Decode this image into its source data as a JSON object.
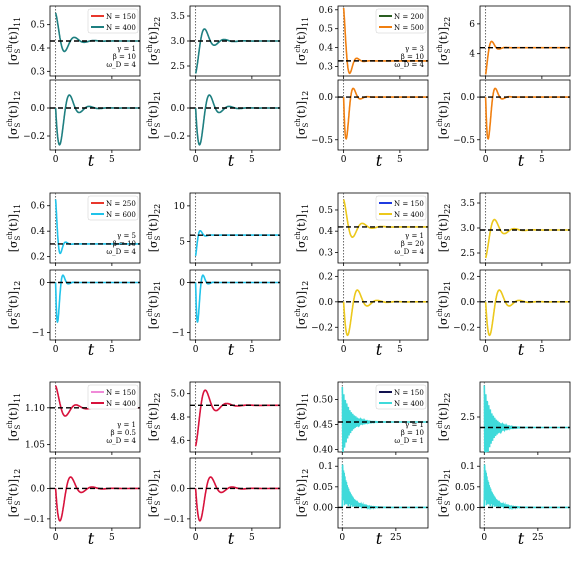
{
  "figure": {
    "xlabel": "t",
    "ylabels": {
      "11": "[σ_S^ch(t)]_11",
      "22": "[σ_S^ch(t)]_22",
      "12": "[σ_S^ch(t)]_12",
      "21": "[σ_S^ch(t)]_21"
    }
  },
  "chart_data": [
    {
      "type": "line",
      "group": "row1-left",
      "legend": [
        {
          "label": "N = 150",
          "color": "#e8372c"
        },
        {
          "label": "N = 400",
          "color": "#1e7f80"
        }
      ],
      "params": [
        "γ = 1",
        "β = 10",
        "ω_D = 4"
      ],
      "main_color": "#1e7f80",
      "xlim": [
        -0.5,
        7.5
      ],
      "xticks": [
        0,
        5
      ],
      "top": {
        "element": "11",
        "ylim": [
          0.28,
          0.58
        ],
        "yticks": [
          0.3,
          0.4,
          0.5
        ],
        "ytick_labels": [
          "0.3",
          "0.4",
          "0.5"
        ],
        "start": 0.55,
        "final": 0.43,
        "decay": 1.2,
        "omega": 3.6
      },
      "bottom": {
        "element": "12",
        "ylim": [
          -0.3,
          0.2
        ],
        "yticks": [
          -0.2,
          0.0
        ],
        "ytick_labels": [
          "−0.2",
          "0.0"
        ],
        "start": 0,
        "amp": 0.42,
        "final": 0,
        "decay": 1.2,
        "omega": 3.6
      }
    },
    {
      "type": "line",
      "group": "row1-left",
      "legend": [],
      "main_color": "#1e7f80",
      "xlim": [
        -0.5,
        7.5
      ],
      "xticks": [
        0,
        5
      ],
      "top": {
        "element": "22",
        "ylim": [
          2.3,
          3.7
        ],
        "yticks": [
          2.5,
          3.0,
          3.5
        ],
        "ytick_labels": [
          "2.5",
          "3.0",
          "3.5"
        ],
        "start": 2.35,
        "final": 3.0,
        "decay": 1.2,
        "omega": 3.6
      },
      "bottom": {
        "element": "21",
        "ylim": [
          -0.3,
          0.2
        ],
        "yticks": [
          -0.2,
          0.0
        ],
        "ytick_labels": [
          "−0.2",
          "0.0"
        ],
        "start": 0,
        "amp": 0.42,
        "final": 0,
        "decay": 1.2,
        "omega": 3.6
      }
    },
    {
      "type": "line",
      "group": "row1-right",
      "legend": [
        {
          "label": "N = 200",
          "color": "#2a5e21"
        },
        {
          "label": "N = 500",
          "color": "#f07f10"
        }
      ],
      "params": [
        "γ = 3",
        "β = 10",
        "ω_D = 4"
      ],
      "main_color": "#f07f10",
      "xlim": [
        -0.5,
        7.5
      ],
      "xticks": [
        0,
        5
      ],
      "top": {
        "element": "11",
        "ylim": [
          0.25,
          0.62
        ],
        "yticks": [
          0.3,
          0.4,
          0.5,
          0.6
        ],
        "ytick_labels": [
          "0.3",
          "0.4",
          "0.5",
          "0.6"
        ],
        "start": 0.61,
        "final": 0.33,
        "decay": 2.5,
        "omega": 5.0
      },
      "bottom": {
        "element": "12",
        "ylim": [
          -0.62,
          0.2
        ],
        "yticks": [
          -0.5,
          0.0
        ],
        "ytick_labels": [
          "−0.5",
          "0.0"
        ],
        "start": 0,
        "amp": 0.95,
        "final": 0,
        "decay": 2.5,
        "omega": 5.0
      }
    },
    {
      "type": "line",
      "group": "row1-right",
      "legend": [],
      "main_color": "#f07f10",
      "xlim": [
        -0.5,
        7.5
      ],
      "xticks": [
        0,
        5
      ],
      "top": {
        "element": "22",
        "ylim": [
          2.5,
          7.2
        ],
        "yticks": [
          4,
          6
        ],
        "ytick_labels": [
          "4",
          "6"
        ],
        "start": 2.6,
        "final": 4.4,
        "decay": 2.5,
        "omega": 5.0
      },
      "bottom": {
        "element": "21",
        "ylim": [
          -0.62,
          0.2
        ],
        "yticks": [
          -0.5,
          0.0
        ],
        "ytick_labels": [
          "−0.5",
          "0.0"
        ],
        "start": 0,
        "amp": 0.95,
        "final": 0,
        "decay": 2.5,
        "omega": 5.0
      }
    },
    {
      "type": "line",
      "group": "row2-left",
      "legend": [
        {
          "label": "N = 250",
          "color": "#e8372c"
        },
        {
          "label": "N = 600",
          "color": "#20c3ea"
        }
      ],
      "params": [
        "γ = 5",
        "β = 10",
        "ω_D = 4"
      ],
      "main_color": "#20c3ea",
      "xlim": [
        -0.5,
        7.5
      ],
      "xticks": [
        0,
        5
      ],
      "top": {
        "element": "11",
        "ylim": [
          0.15,
          0.7
        ],
        "yticks": [
          0.2,
          0.4,
          0.6
        ],
        "ytick_labels": [
          "0.2",
          "0.4",
          "0.6"
        ],
        "start": 0.65,
        "final": 0.3,
        "decay": 3.5,
        "omega": 6.5
      },
      "bottom": {
        "element": "12",
        "ylim": [
          -1.15,
          0.25
        ],
        "yticks": [
          -1,
          0
        ],
        "ytick_labels": [
          "−1",
          "0"
        ],
        "start": 0,
        "amp": 1.6,
        "final": 0,
        "decay": 3.5,
        "omega": 6.5
      }
    },
    {
      "type": "line",
      "group": "row2-left",
      "legend": [],
      "main_color": "#20c3ea",
      "xlim": [
        -0.5,
        7.5
      ],
      "xticks": [
        0,
        5
      ],
      "top": {
        "element": "22",
        "ylim": [
          2,
          11.8
        ],
        "yticks": [
          5,
          10
        ],
        "ytick_labels": [
          "5",
          "10"
        ],
        "start": 3,
        "final": 5.9,
        "decay": 3.5,
        "omega": 6.5
      },
      "bottom": {
        "element": "21",
        "ylim": [
          -1.15,
          0.25
        ],
        "yticks": [
          -1,
          0
        ],
        "ytick_labels": [
          "−1",
          "0"
        ],
        "start": 0,
        "amp": 1.6,
        "final": 0,
        "decay": 3.5,
        "omega": 6.5
      }
    },
    {
      "type": "line",
      "group": "row2-right",
      "legend": [
        {
          "label": "N = 150",
          "color": "#1f3be0"
        },
        {
          "label": "N = 400",
          "color": "#ecc81c"
        }
      ],
      "params": [
        "γ = 1",
        "β = 20",
        "ω_D = 4"
      ],
      "main_color": "#ecc81c",
      "xlim": [
        -0.5,
        7.5
      ],
      "xticks": [
        0,
        5
      ],
      "top": {
        "element": "11",
        "ylim": [
          0.25,
          0.58
        ],
        "yticks": [
          0.3,
          0.4,
          0.5
        ],
        "ytick_labels": [
          "0.3",
          "0.4",
          "0.5"
        ],
        "start": 0.55,
        "final": 0.42,
        "decay": 1.2,
        "omega": 3.6
      },
      "bottom": {
        "element": "12",
        "ylim": [
          -0.3,
          0.25
        ],
        "yticks": [
          -0.2,
          0.0,
          0.2
        ],
        "ytick_labels": [
          "−0.2",
          "0.0",
          "0.2"
        ],
        "start": 0,
        "amp": 0.42,
        "final": 0,
        "decay": 1.2,
        "omega": 3.6
      }
    },
    {
      "type": "line",
      "group": "row2-right",
      "legend": [],
      "main_color": "#ecc81c",
      "xlim": [
        -0.5,
        7.5
      ],
      "xticks": [
        0,
        5
      ],
      "top": {
        "element": "22",
        "ylim": [
          2.3,
          3.7
        ],
        "yticks": [
          2.5,
          3.0,
          3.5
        ],
        "ytick_labels": [
          "2.5",
          "3.0",
          "3.5"
        ],
        "start": 2.4,
        "final": 2.96,
        "decay": 1.2,
        "omega": 3.6
      },
      "bottom": {
        "element": "21",
        "ylim": [
          -0.3,
          0.25
        ],
        "yticks": [
          -0.2,
          0.0,
          0.2
        ],
        "ytick_labels": [
          "−0.2",
          "0.0",
          "0.2"
        ],
        "start": 0,
        "amp": 0.42,
        "final": 0,
        "decay": 1.2,
        "omega": 3.6
      }
    },
    {
      "type": "line",
      "group": "row3-left",
      "legend": [
        {
          "label": "N = 150",
          "color": "#f08ad8"
        },
        {
          "label": "N = 400",
          "color": "#d8123c"
        }
      ],
      "params": [
        "γ = 1",
        "β = 0.5",
        "ω_D = 4"
      ],
      "main_color": "#d8123c",
      "xlim": [
        -0.5,
        7.5
      ],
      "xticks": [
        0,
        5
      ],
      "top": {
        "element": "11",
        "ylim": [
          1.04,
          1.135
        ],
        "yticks": [
          1.05,
          1.1
        ],
        "ytick_labels": [
          "1.05",
          "1.10"
        ],
        "start": 1.13,
        "final": 1.1,
        "decay": 1.1,
        "omega": 3.3
      },
      "bottom": {
        "element": "12",
        "ylim": [
          -0.13,
          0.1
        ],
        "yticks": [
          -0.1,
          0.0
        ],
        "ytick_labels": [
          "−0.1",
          "0.0"
        ],
        "start": 0,
        "amp": 0.17,
        "final": 0,
        "decay": 1.1,
        "omega": 3.3
      }
    },
    {
      "type": "line",
      "group": "row3-left",
      "legend": [],
      "main_color": "#d8123c",
      "xlim": [
        -0.5,
        7.5
      ],
      "xticks": [
        0,
        5
      ],
      "top": {
        "element": "22",
        "ylim": [
          4.5,
          5.1
        ],
        "yticks": [
          4.6,
          4.8,
          5.0
        ],
        "ytick_labels": [
          "4.6",
          "4.8",
          "5.0"
        ],
        "start": 4.55,
        "final": 4.9,
        "decay": 1.1,
        "omega": 3.3
      },
      "bottom": {
        "element": "21",
        "ylim": [
          -0.13,
          0.1
        ],
        "yticks": [
          -0.1,
          0.0
        ],
        "ytick_labels": [
          "−0.1",
          "0.0"
        ],
        "start": 0,
        "amp": 0.17,
        "final": 0,
        "decay": 1.1,
        "omega": 3.3
      }
    },
    {
      "type": "line",
      "group": "row3-right",
      "legend": [
        {
          "label": "N = 150",
          "color": "#12124f"
        },
        {
          "label": "N = 400",
          "color": "#3fdada"
        }
      ],
      "params": [
        "γ = 1",
        "β = 10",
        "ω_D = 1"
      ],
      "main_color": "#3fdada",
      "xlim": [
        -2,
        40
      ],
      "xticks": [
        0,
        25
      ],
      "top": {
        "element": "11",
        "ylim": [
          0.395,
          0.535
        ],
        "yticks": [
          0.4,
          0.45,
          0.5
        ],
        "ytick_labels": [
          "0.40",
          "0.45",
          "0.50"
        ],
        "start": 0.455,
        "amp": 0.07,
        "final": 0.455,
        "decay": 0.3,
        "omega": 9.0,
        "envelope": true
      },
      "bottom": {
        "element": "12",
        "ylim": [
          -0.05,
          0.12
        ],
        "yticks": [
          0.0,
          0.05,
          0.1
        ],
        "ytick_labels": [
          "0.00",
          "0.05",
          "0.1"
        ],
        "start": 0,
        "amp": 0.11,
        "final": 0,
        "decay": 0.3,
        "omega": 9.0,
        "envelope": true
      }
    },
    {
      "type": "line",
      "group": "row3-right",
      "legend": [],
      "main_color": "#3fdada",
      "xlim": [
        -2,
        40
      ],
      "xticks": [
        0,
        25
      ],
      "top": {
        "element": "22",
        "ylim": [
          2.4,
          2.6
        ],
        "yticks": [
          2.5
        ],
        "ytick_labels": [
          "2.5"
        ],
        "start": 2.47,
        "amp": 0.12,
        "final": 2.47,
        "decay": 0.3,
        "omega": 9.0,
        "envelope": true
      },
      "bottom": {
        "element": "21",
        "ylim": [
          -0.05,
          0.12
        ],
        "yticks": [
          0.0,
          0.05,
          0.1
        ],
        "ytick_labels": [
          "0.00",
          "0.05",
          "0.1"
        ],
        "start": 0,
        "amp": 0.11,
        "final": 0,
        "decay": 0.3,
        "omega": 9.0,
        "envelope": true
      }
    }
  ]
}
